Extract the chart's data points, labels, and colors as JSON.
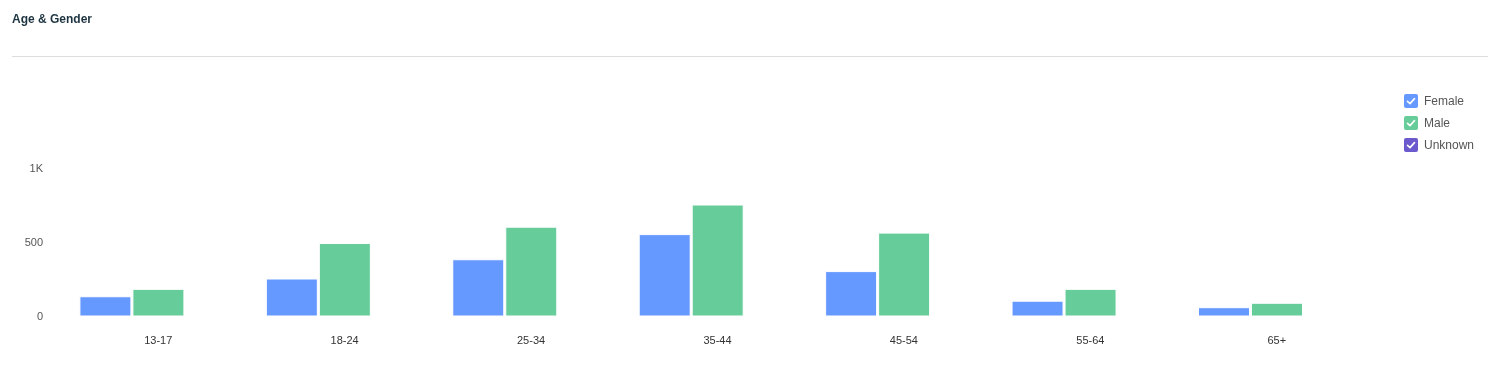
{
  "chart_data": {
    "type": "bar",
    "title": "Age & Gender",
    "categories": [
      "13-17",
      "18-24",
      "25-34",
      "35-44",
      "45-54",
      "55-64",
      "65+"
    ],
    "series": [
      {
        "name": "Female",
        "color": "#6699ff",
        "values": [
          130,
          250,
          380,
          550,
          300,
          100,
          56
        ]
      },
      {
        "name": "Male",
        "color": "#66cc99",
        "values": [
          180,
          490,
          600,
          750,
          560,
          180,
          86
        ]
      },
      {
        "name": "Unknown",
        "color": "#6a5acd",
        "values": [
          0,
          0,
          0,
          0,
          0,
          0,
          0
        ]
      }
    ],
    "ylim": [
      0,
      1000
    ],
    "yticks": [
      0,
      500,
      {
        "value": 1000,
        "label": "1K"
      }
    ],
    "grid": false,
    "legend": "top right"
  }
}
